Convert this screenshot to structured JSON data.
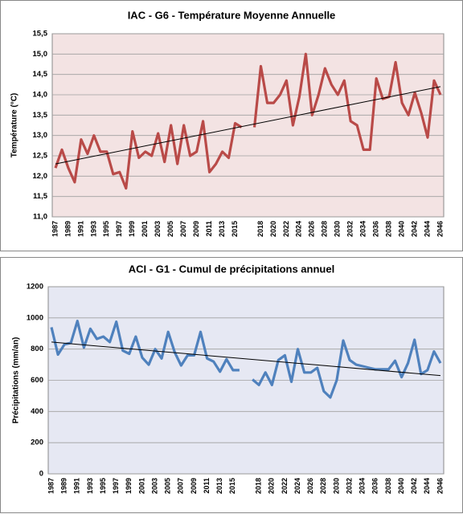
{
  "chart_data": [
    {
      "type": "line",
      "title": "IAC - G6 - Température Moyenne Annuelle",
      "y_label": "Température (°C)",
      "categories": [
        "1987",
        null,
        "1989",
        null,
        "1991",
        null,
        "1993",
        null,
        "1995",
        null,
        "1997",
        null,
        "1999",
        null,
        "2001",
        null,
        "2003",
        null,
        "2005",
        null,
        "2007",
        null,
        "2009",
        null,
        "2011",
        null,
        "2013",
        null,
        "2015",
        null,
        null,
        null,
        "2018",
        null,
        "2020",
        null,
        "2022",
        null,
        "2024",
        null,
        "2026",
        null,
        "2028",
        null,
        "2030",
        null,
        "2032",
        null,
        "2034",
        null,
        "2036",
        null,
        "2038",
        null,
        "2040",
        null,
        "2042",
        null,
        "2044",
        null,
        "2046"
      ],
      "series": [
        {
          "color": "#b94a48",
          "values": [
            12.2,
            12.65,
            12.2,
            11.85,
            12.9,
            12.55,
            13.0,
            12.6,
            12.6,
            12.05,
            12.1,
            11.7,
            13.1,
            12.45,
            12.6,
            12.5,
            13.05,
            12.35,
            13.25,
            12.3,
            13.25,
            12.5,
            12.6,
            13.35,
            12.1,
            12.3,
            12.6,
            12.45,
            13.3,
            13.2,
            null,
            13.2,
            14.7,
            13.8,
            13.8,
            14.0,
            14.35,
            13.25,
            13.95,
            15.0,
            13.5,
            14.0,
            14.65,
            14.25,
            14.0,
            14.35,
            13.35,
            13.25,
            12.65,
            12.65,
            14.4,
            13.9,
            13.95,
            14.8,
            13.8,
            13.5,
            14.05,
            13.55,
            12.95,
            14.35,
            14.0
          ]
        }
      ],
      "trendline": {
        "color": "#000000",
        "values": [
          12.3,
          14.2
        ]
      },
      "plot_background": "#f3e3e3",
      "ylim": [
        11.0,
        15.5
      ],
      "yticks": [
        {
          "value": 11.0,
          "label": "11,0"
        },
        {
          "value": 11.5,
          "label": "11,5"
        },
        {
          "value": 12.0,
          "label": "12,0"
        },
        {
          "value": 12.5,
          "label": "12,5"
        },
        {
          "value": 13.0,
          "label": "13,0"
        },
        {
          "value": 13.5,
          "label": "13,5"
        },
        {
          "value": 14.0,
          "label": "14,0"
        },
        {
          "value": 14.5,
          "label": "14,5"
        },
        {
          "value": 15.0,
          "label": "15,0"
        },
        {
          "value": 15.5,
          "label": "15,5"
        }
      ],
      "grid": true
    },
    {
      "type": "line",
      "title": "ACI - G1 - Cumul de précipitations annuel",
      "y_label": "Précipitations (mm/an)",
      "categories": [
        "1987",
        null,
        "1989",
        null,
        "1991",
        null,
        "1993",
        null,
        "1995",
        null,
        "1997",
        null,
        "1999",
        null,
        "2001",
        null,
        "2003",
        null,
        "2005",
        null,
        "2007",
        null,
        "2009",
        null,
        "2011",
        null,
        "2013",
        null,
        "2015",
        null,
        null,
        null,
        "2018",
        null,
        "2020",
        null,
        "2022",
        null,
        "2024",
        null,
        "2026",
        null,
        "2028",
        null,
        "2030",
        null,
        "2032",
        null,
        "2034",
        null,
        "2036",
        null,
        "2038",
        null,
        "2040",
        null,
        "2042",
        null,
        "2044",
        null,
        "2046"
      ],
      "series": [
        {
          "color": "#4f81bd",
          "values": [
            940,
            765,
            830,
            840,
            980,
            810,
            930,
            865,
            880,
            845,
            975,
            790,
            770,
            880,
            745,
            700,
            800,
            740,
            910,
            780,
            695,
            760,
            760,
            910,
            740,
            720,
            655,
            735,
            665,
            665,
            null,
            605,
            570,
            650,
            570,
            730,
            760,
            590,
            800,
            650,
            650,
            680,
            530,
            490,
            600,
            855,
            730,
            700,
            690,
            680,
            670,
            670,
            670,
            725,
            620,
            710,
            860,
            640,
            665,
            785,
            710
          ]
        }
      ],
      "trendline": {
        "color": "#000000",
        "values": [
          845,
          630
        ]
      },
      "plot_background": "#e6e8f3",
      "ylim": [
        0,
        1200
      ],
      "yticks": [
        0,
        200,
        400,
        600,
        800,
        1000,
        1200
      ],
      "grid": true
    }
  ]
}
